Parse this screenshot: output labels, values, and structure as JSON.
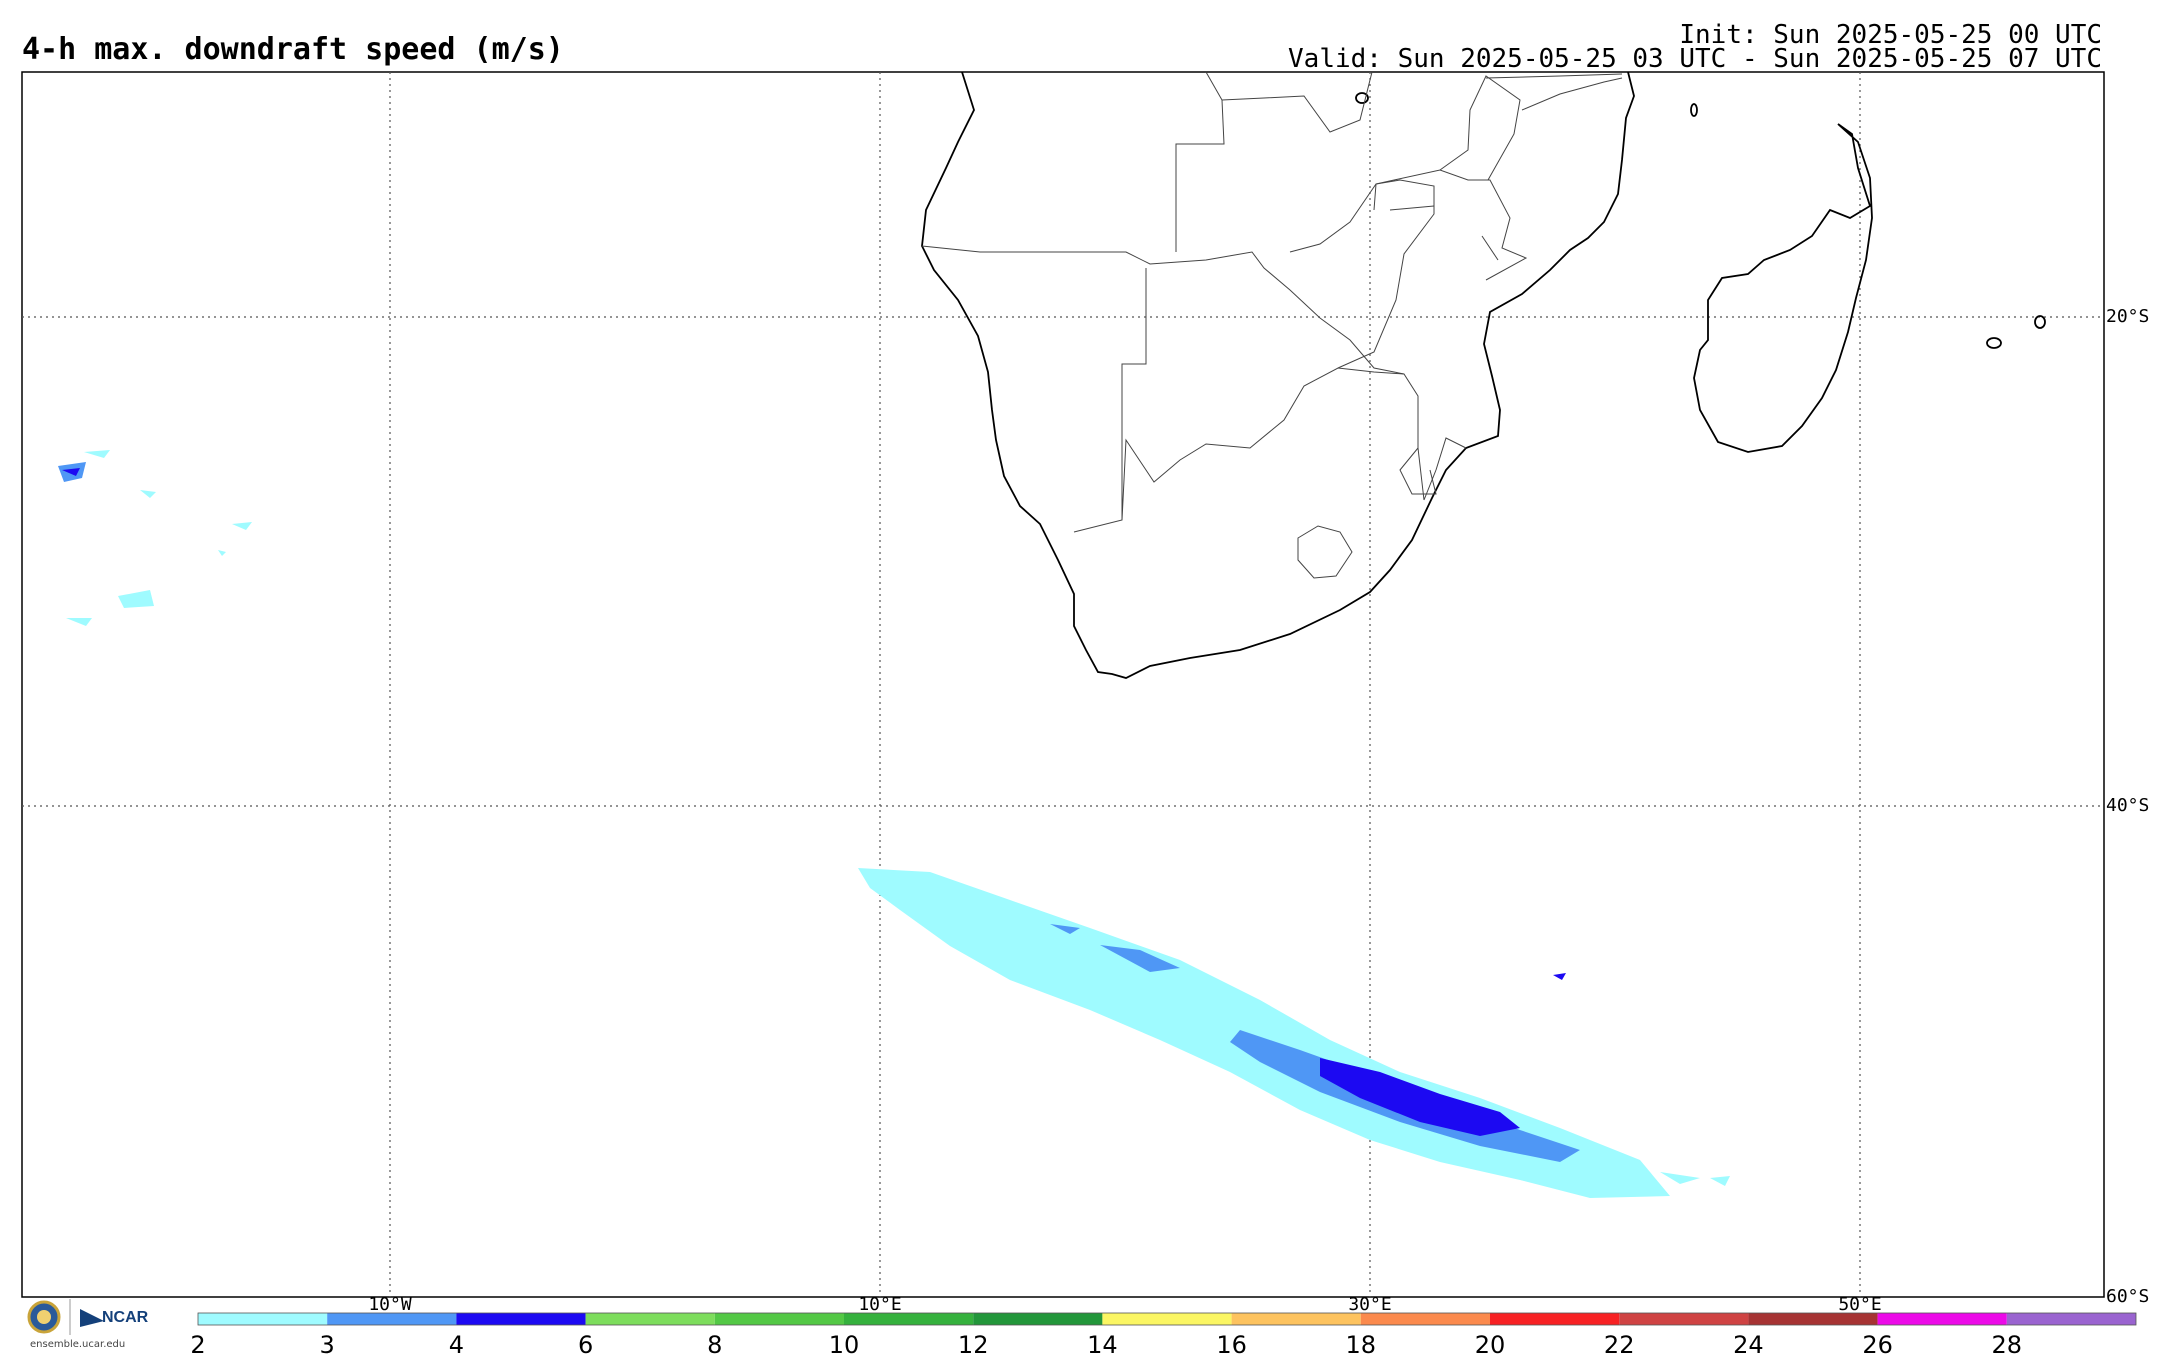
{
  "header": {
    "title": "4-h max. downdraft speed (m/s)",
    "init": "Init: Sun 2025-05-25 00 UTC",
    "valid": "Valid: Sun 2025-05-25 03 UTC - Sun 2025-05-25 07 UTC"
  },
  "map": {
    "lon_labels": [
      "10°W",
      "10°E",
      "30°E",
      "50°E"
    ],
    "lat_labels": [
      "20°S",
      "40°S",
      "60°S"
    ]
  },
  "colorbar": {
    "ticks": [
      "2",
      "3",
      "4",
      "6",
      "8",
      "10",
      "12",
      "14",
      "16",
      "18",
      "20",
      "22",
      "24",
      "26",
      "28"
    ],
    "colors": [
      "#9ffbff",
      "#4f97f5",
      "#1c09f2",
      "#7ddd5c",
      "#53c845",
      "#35b13d",
      "#22963a",
      "#fbf663",
      "#fdc35f",
      "#fb8a4d",
      "#f72123",
      "#cf4343",
      "#a63333",
      "#ec0ae8",
      "#9a64d0"
    ]
  },
  "logo": {
    "org": "NCAR",
    "url": "ensemble.ucar.edu"
  }
}
